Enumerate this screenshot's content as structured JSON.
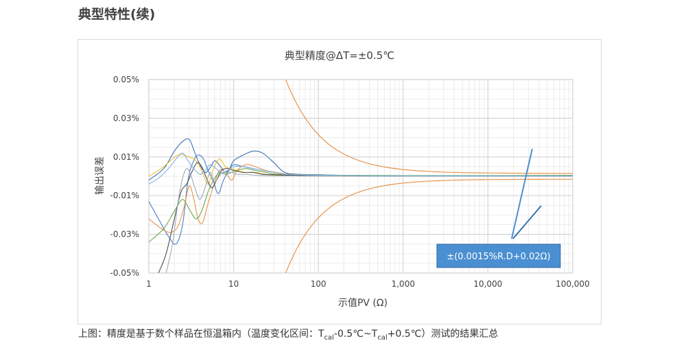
{
  "page": {
    "heading": "典型特性(续)"
  },
  "caption": {
    "prefix": "上图：精度是基于数个样品在恒温箱内（温度变化区间：",
    "t1": "T",
    "t1_sub": "cal",
    "mid": "-0.5℃~",
    "t2": "T",
    "t2_sub": "cal",
    "suffix": "+0.5℃）测试的结果汇总"
  },
  "chart_data": {
    "type": "line",
    "title": "典型精度@ΔT=±0.5℃",
    "xlabel": "示值PV (Ω)",
    "ylabel": "输出误差",
    "x_scale": "log",
    "xlim": [
      1,
      100000
    ],
    "ylim": [
      -0.05,
      0.05
    ],
    "x_ticks": [
      "1",
      "10",
      "100",
      "1,000",
      "10,000",
      "100,000"
    ],
    "y_ticks": [
      "0.05%",
      "0.03%",
      "0.01%",
      "-0.01%",
      "-0.03%",
      "-0.05%"
    ],
    "grid": true,
    "annotation": {
      "text": "±(0.0015%R.D+0.02Ω)",
      "color": "#4a8fd1"
    },
    "limit_color": "#e8924a",
    "limit_formula": "±(0.0015% × PV + 0.02Ω) / PV",
    "series": [
      {
        "color": "#4a7ec8",
        "x": [
          1,
          1.3,
          1.7,
          2.1,
          2.5,
          2.9,
          3.3,
          3.8,
          4.4,
          5,
          5.8,
          6.6,
          7.6,
          8.8,
          10,
          13,
          17,
          22,
          30,
          40,
          60,
          100,
          300,
          1000,
          10000,
          100000
        ],
        "y": [
          -0.013,
          -0.022,
          -0.031,
          -0.035,
          -0.025,
          -0.002,
          0.007,
          0.011,
          0.009,
          0.003,
          -0.003,
          -0.009,
          -0.002,
          0.003,
          0.006,
          0.005,
          0.004,
          0.003,
          0.002,
          0.001,
          0.001,
          0.0005,
          0.0002,
          0.0001,
          0.0001,
          0.0001
        ]
      },
      {
        "color": "#3d6fb0",
        "x": [
          1,
          1.5,
          2,
          2.5,
          3,
          3.5,
          4,
          4.6,
          5.2,
          6,
          7,
          8,
          9,
          10,
          13,
          17,
          22,
          30,
          40,
          60,
          100,
          300,
          1000,
          10000,
          100000
        ],
        "y": [
          -0.002,
          0.004,
          0.013,
          0.018,
          0.019,
          0.012,
          0.006,
          0.002,
          0.004,
          0.008,
          0.005,
          0.002,
          0.004,
          0.008,
          0.011,
          0.013,
          0.012,
          0.007,
          0.002,
          0.001,
          0.0008,
          0.0003,
          0.0002,
          0.0002,
          0.0001
        ]
      },
      {
        "color": "#e8924a",
        "x": [
          1,
          1.4,
          1.8,
          2.2,
          2.6,
          3,
          3.4,
          3.8,
          4.3,
          5,
          5.8,
          6.8,
          8,
          9.5,
          11,
          14,
          18,
          24,
          32,
          45,
          70,
          120,
          300,
          1000,
          10000,
          100000
        ],
        "y": [
          -0.022,
          -0.027,
          -0.029,
          -0.026,
          -0.016,
          -0.005,
          -0.012,
          -0.022,
          -0.024,
          -0.014,
          -0.005,
          0.003,
          0.002,
          -0.002,
          0.003,
          0.006,
          0.005,
          0.003,
          0.002,
          0.001,
          0.0005,
          0.0002,
          0.0001,
          0.0001,
          0.0001,
          0.0001
        ]
      },
      {
        "color": "#f0c22a",
        "x": [
          1,
          1.4,
          1.8,
          2.2,
          2.6,
          3,
          3.6,
          4.2,
          5,
          5.8,
          6.8,
          8,
          9.5,
          11,
          14,
          18,
          24,
          32,
          45,
          70,
          120,
          300,
          1000,
          10000,
          100000
        ],
        "y": [
          0.0,
          0.004,
          0.008,
          0.011,
          0.011,
          0.01,
          0.008,
          0.003,
          -0.004,
          0.004,
          0.009,
          0.005,
          0.004,
          0.003,
          0.002,
          0.002,
          0.001,
          0.0005,
          0.0003,
          0.0002,
          0.0001,
          0.0001,
          0.0001,
          0.0001,
          0.0001
        ]
      },
      {
        "color": "#6aa84f",
        "x": [
          1,
          1.5,
          2,
          2.5,
          3,
          3.6,
          4.2,
          5,
          5.8,
          6.8,
          8,
          9.5,
          11,
          14,
          18,
          24,
          32,
          45,
          70,
          120,
          300,
          1000,
          10000,
          100000
        ],
        "y": [
          -0.034,
          -0.027,
          -0.018,
          -0.012,
          -0.017,
          -0.022,
          -0.018,
          -0.008,
          -0.002,
          0.002,
          0.001,
          0.002,
          0.003,
          0.004,
          0.003,
          0.002,
          0.001,
          0.001,
          0.0008,
          0.0006,
          0.0005,
          0.0004,
          0.0004,
          0.0005
        ]
      },
      {
        "color": "#4d4d4d",
        "x": [
          1.3,
          1.6,
          2,
          2.4,
          2.8,
          3.2,
          3.7,
          4.2,
          4.8,
          5.5,
          6.3,
          7.2,
          8.5,
          10,
          13,
          17,
          22,
          30,
          40,
          60,
          100,
          300,
          1000,
          10000,
          100000
        ],
        "y": [
          -0.05,
          -0.04,
          -0.022,
          -0.008,
          -0.004,
          0.002,
          0.007,
          0.005,
          -0.001,
          -0.006,
          -0.002,
          0.003,
          0.004,
          0.003,
          0.002,
          0.002,
          0.001,
          0.0008,
          0.0006,
          0.0004,
          0.0002,
          0.0001,
          0.0001,
          0.0001,
          0.0001
        ]
      },
      {
        "color": "#9eaab8",
        "x": [
          1.6,
          1.9,
          2.2,
          2.5,
          2.8,
          3.1,
          3.5,
          4,
          4.6,
          5.3,
          6,
          7,
          8.2,
          9.5,
          11,
          14,
          18,
          24,
          32,
          45,
          70,
          120,
          300,
          1000,
          10000,
          100000
        ],
        "y": [
          -0.05,
          -0.035,
          -0.014,
          -0.001,
          0.004,
          0.001,
          -0.006,
          -0.012,
          -0.006,
          0.002,
          -0.003,
          0.001,
          0.002,
          0.002,
          0.001,
          0.001,
          0.0005,
          0.0003,
          0.0002,
          0.0002,
          0.0001,
          0.0001,
          0.0001,
          0.0001,
          0.0001,
          0.0001
        ]
      },
      {
        "color": "#7fb2e5",
        "x": [
          1,
          1.3,
          1.7,
          2.1,
          2.5,
          2.9,
          3.4,
          4,
          4.6,
          5.3,
          6.2,
          7.2,
          8.5,
          10,
          13,
          17,
          22,
          30,
          40,
          60,
          100,
          300,
          1000,
          10000,
          100000
        ],
        "y": [
          -0.004,
          -0.001,
          0.004,
          0.009,
          0.012,
          0.008,
          0.004,
          0.001,
          0.003,
          0.006,
          0.004,
          0.002,
          0.003,
          0.005,
          0.005,
          0.004,
          0.003,
          0.002,
          0.001,
          0.0008,
          0.0005,
          0.0003,
          0.0002,
          0.0002,
          0.0002
        ]
      }
    ]
  }
}
